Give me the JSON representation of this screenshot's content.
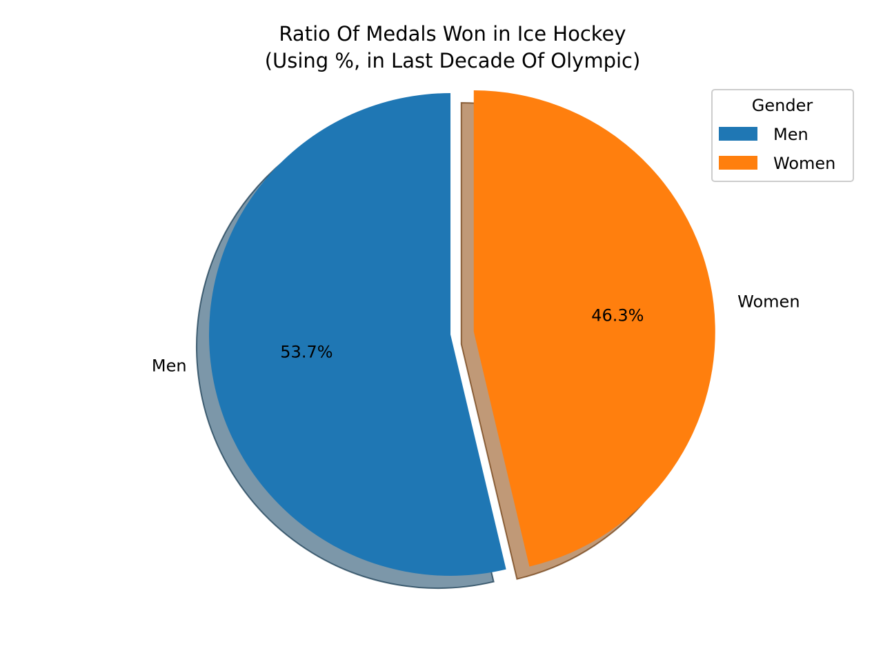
{
  "chart_data": {
    "type": "pie",
    "title": "Ratio Of Medals Won in Ice Hockey\n(Using %, in Last Decade Of Olympic)",
    "title_lines": [
      "Ratio Of Medals Won in Ice Hockey",
      "(Using %, in Last Decade Of Olympic)"
    ],
    "categories": [
      "Men",
      "Women"
    ],
    "values": [
      53.7,
      46.3
    ],
    "value_labels": [
      "53.7%",
      "46.3%"
    ],
    "colors": [
      "#1f77b4",
      "#ff7f0e"
    ],
    "exploded": [
      false,
      true
    ],
    "shadow": true,
    "start_angle_deg": 90,
    "direction": "counterclockwise",
    "legend": {
      "title": "Gender",
      "placement": "top-right",
      "entries": [
        "Men",
        "Women"
      ]
    }
  }
}
